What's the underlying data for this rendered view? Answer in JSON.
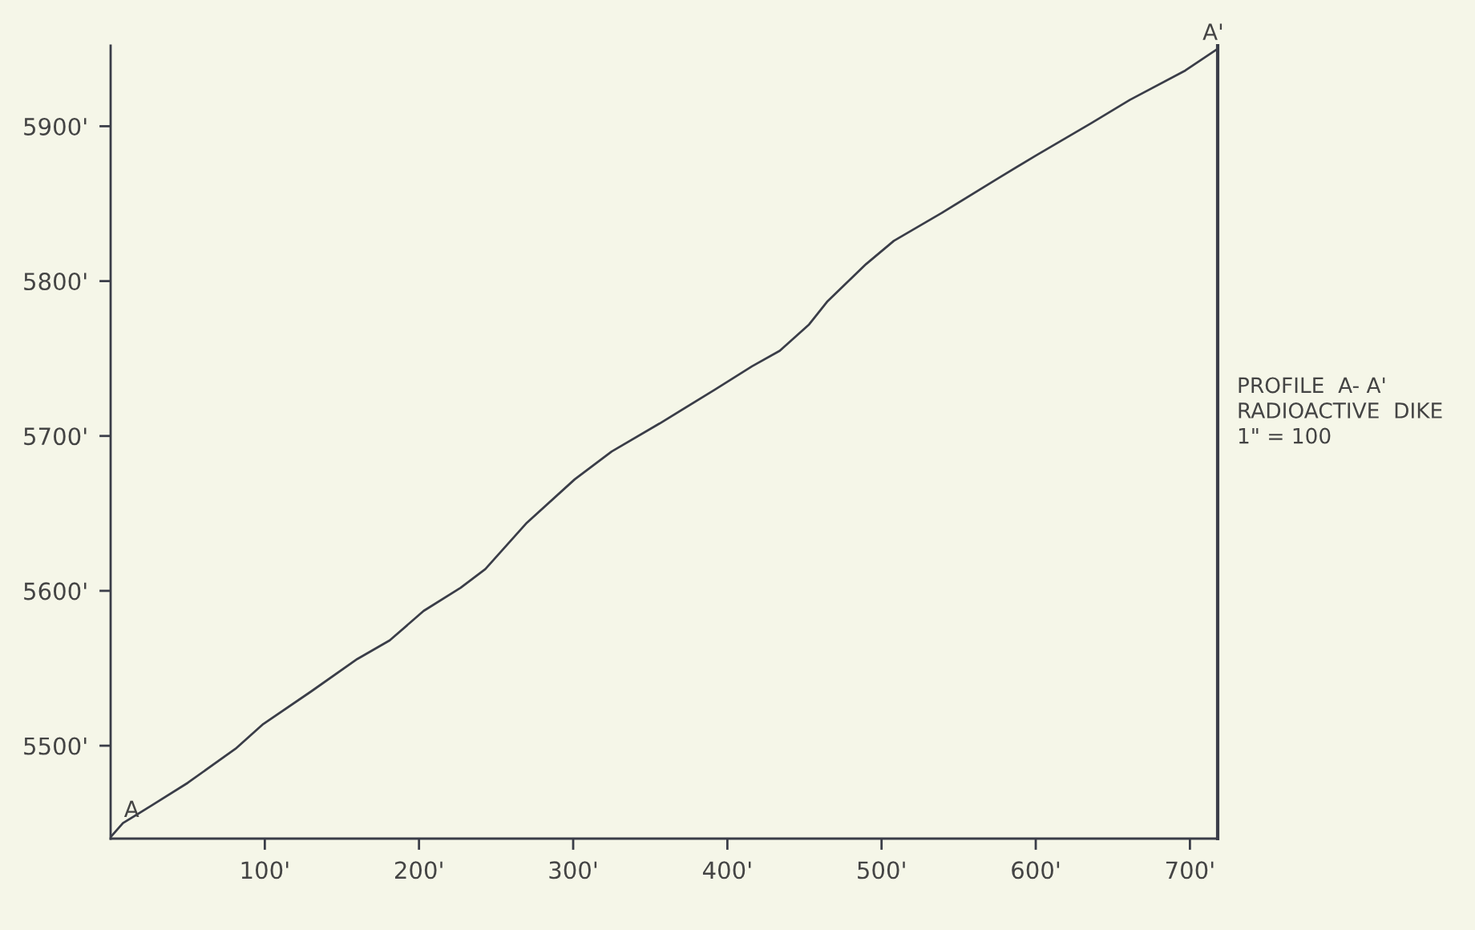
{
  "chart_data": {
    "type": "line",
    "x": [
      0,
      8,
      26,
      50,
      81,
      99,
      130,
      160,
      181,
      203,
      227,
      243,
      270,
      301,
      325,
      356,
      392,
      416,
      434,
      453,
      465,
      490,
      508,
      539,
      575,
      600,
      636,
      661,
      697,
      718
    ],
    "series": [
      {
        "color": "#3a3d48",
        "values": [
          5441,
          5450,
          5461,
          5476,
          5498,
          5514,
          5535,
          5556,
          5568,
          5587,
          5602,
          5614,
          5644,
          5672,
          5690,
          5708,
          5730,
          5745,
          5755,
          5772,
          5787,
          5811,
          5826,
          5844,
          5866,
          5881,
          5902,
          5917,
          5936,
          5950
        ]
      }
    ],
    "xlim": [
      0,
      718
    ],
    "ylim": [
      5440,
      5952
    ],
    "xticks": [
      {
        "value": 100,
        "label": "100'"
      },
      {
        "value": 200,
        "label": "200'"
      },
      {
        "value": 300,
        "label": "300'"
      },
      {
        "value": 400,
        "label": "400'"
      },
      {
        "value": 500,
        "label": "500'"
      },
      {
        "value": 600,
        "label": "600'"
      },
      {
        "value": 700,
        "label": "700'"
      }
    ],
    "yticks": [
      {
        "value": 5500,
        "label": "5500'"
      },
      {
        "value": 5600,
        "label": "5600'"
      },
      {
        "value": 5700,
        "label": "5700'"
      },
      {
        "value": 5800,
        "label": "5800'"
      },
      {
        "value": 5900,
        "label": "5900'"
      }
    ],
    "grid": false,
    "marker": "none",
    "line_style": "solid",
    "annotations": [
      {
        "text": "A",
        "x": 0,
        "y": 5441
      },
      {
        "text": "A'",
        "x": 718,
        "y": 5950
      },
      "PROFILE  A- A'\nRADIOACTIVE  DIKE\n1\" = 100"
    ]
  }
}
